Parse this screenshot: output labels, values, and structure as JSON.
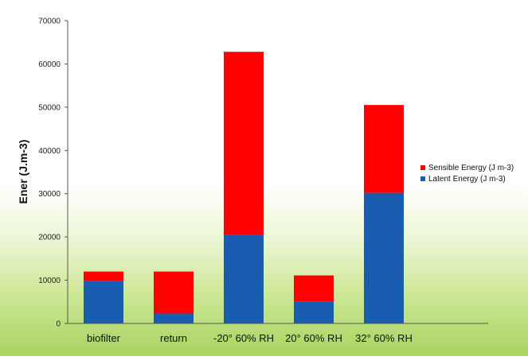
{
  "chart_data": {
    "type": "bar",
    "stacked": true,
    "title": "",
    "xlabel": "",
    "ylabel": "Ener (J.m-3)",
    "ylim": [
      0,
      70000
    ],
    "yticks": [
      0,
      10000,
      20000,
      30000,
      40000,
      50000,
      60000,
      70000
    ],
    "grid": false,
    "legend_position": "right",
    "categories": [
      "biofilter",
      "return",
      "-20° 60% RH",
      "20° 60% RH",
      "32° 60% RH"
    ],
    "series": [
      {
        "name": "Latent Energy (J m-3)",
        "color": "#1a5cb0",
        "values": [
          9800,
          2300,
          20500,
          5100,
          30200
        ]
      },
      {
        "name": "Sensible Energy (J m-3)",
        "color": "#ff0000",
        "values": [
          2200,
          9700,
          42300,
          6000,
          20300
        ]
      }
    ]
  }
}
